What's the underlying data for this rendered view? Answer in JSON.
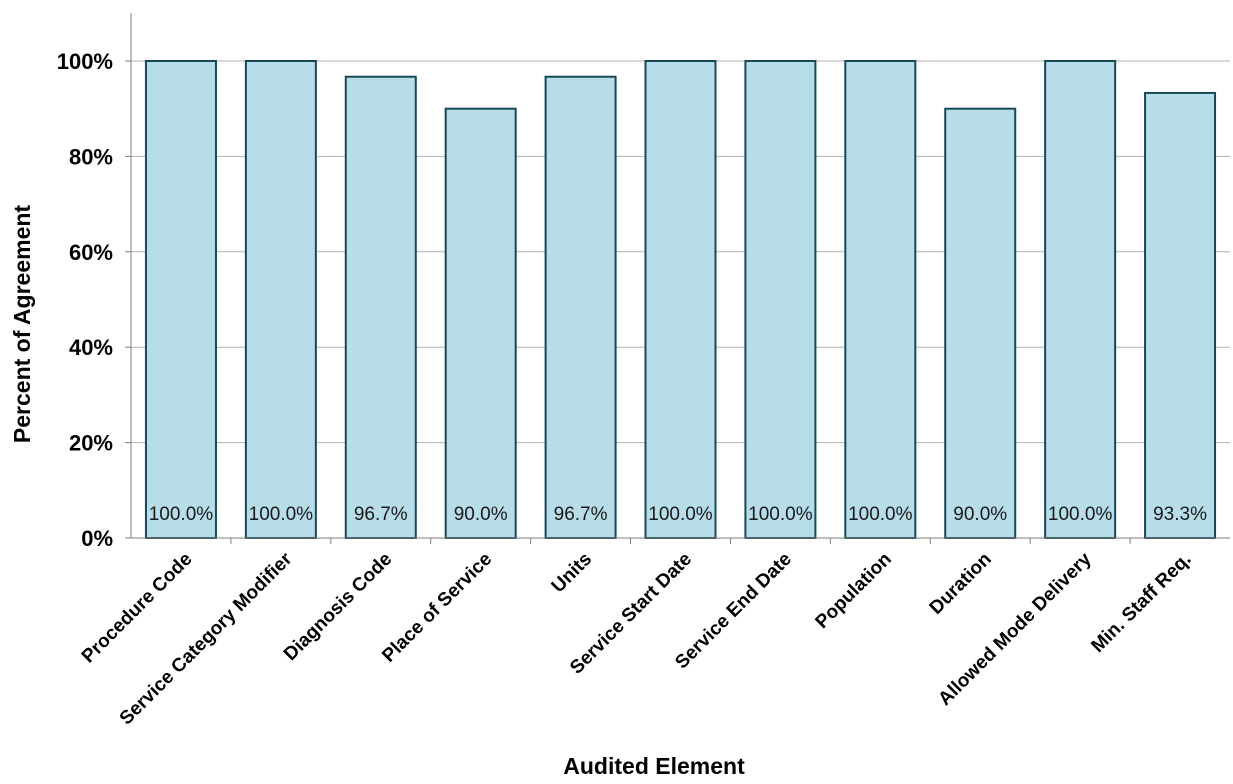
{
  "chart_data": {
    "type": "bar",
    "title": "",
    "xlabel": "Audited Element",
    "ylabel": "Percent of Agreement",
    "categories": [
      "Procedure Code",
      "Service Category Modifier",
      "Diagnosis Code",
      "Place of Service",
      "Units",
      "Service Start Date",
      "Service End Date",
      "Population",
      "Duration",
      "Allowed Mode Delivery",
      "Min. Staff Req."
    ],
    "values": [
      100.0,
      100.0,
      96.7,
      90.0,
      96.7,
      100.0,
      100.0,
      100.0,
      90.0,
      100.0,
      93.3
    ],
    "data_labels": [
      "100.0%",
      "100.0%",
      "96.7%",
      "90.0%",
      "96.7%",
      "100.0%",
      "100.0%",
      "100.0%",
      "90.0%",
      "100.0%",
      "93.3%"
    ],
    "ylim": [
      0,
      100
    ],
    "yticks": [
      0,
      20,
      40,
      60,
      80,
      100
    ],
    "ytick_labels": [
      "0%",
      "20%",
      "40%",
      "60%",
      "80%",
      "100%"
    ],
    "grid": true,
    "legend": "none",
    "colors": {
      "bar_fill": "#b7dde8",
      "bar_stroke": "#17485a",
      "grid": "#b3b3b3",
      "axis": "#7f7f7f",
      "text": "#000000"
    }
  }
}
